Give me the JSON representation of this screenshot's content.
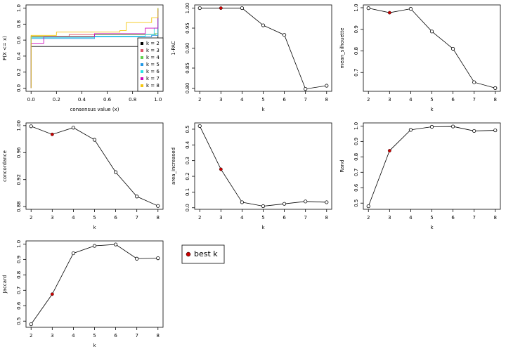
{
  "chart_data": [
    {
      "type": "step",
      "xlabel": "consensus value (x)",
      "ylabel": "P(X <= x)",
      "xlim": [
        -0.04,
        1.04
      ],
      "ylim": [
        -0.04,
        1.04
      ],
      "xticks": [
        {
          "value": 0,
          "label": "0.0"
        },
        0.2,
        0.4,
        0.6,
        0.8,
        {
          "value": 1,
          "label": "1.0"
        }
      ],
      "yticks": [
        {
          "value": 0,
          "label": "0.0"
        },
        0.2,
        0.4,
        0.6,
        0.8,
        {
          "value": 1,
          "label": "1.0"
        }
      ],
      "legend": "bottom-right",
      "series": [
        {
          "name": "k = 2",
          "color": "#000000",
          "x": [
            0,
            0,
            1,
            1
          ],
          "values": [
            0,
            0.52,
            0.52,
            1
          ]
        },
        {
          "name": "k = 3",
          "color": "#DF536B",
          "x": [
            0,
            0,
            0.3,
            0.97,
            1
          ],
          "values": [
            0,
            0.64,
            0.67,
            0.68,
            1
          ]
        },
        {
          "name": "k = 4",
          "color": "#61D04F",
          "x": [
            0,
            0,
            0.5,
            0.98,
            1
          ],
          "values": [
            0,
            0.65,
            0.67,
            0.68,
            1
          ]
        },
        {
          "name": "k = 5",
          "color": "#2297E6",
          "x": [
            0,
            0,
            0.5,
            0.95,
            1
          ],
          "values": [
            0,
            0.62,
            0.64,
            0.66,
            1
          ]
        },
        {
          "name": "k = 6",
          "color": "#28E2E5",
          "x": [
            0,
            0,
            0.5,
            0.9,
            0.97,
            1
          ],
          "values": [
            0,
            0.63,
            0.65,
            0.67,
            0.75,
            0.95
          ]
        },
        {
          "name": "k = 7",
          "color": "#CD0BBC",
          "x": [
            0,
            0,
            0.1,
            0.5,
            0.9,
            1
          ],
          "values": [
            0,
            0.56,
            0.64,
            0.68,
            0.75,
            0.97
          ]
        },
        {
          "name": "k = 8",
          "color": "#F5C710",
          "x": [
            0,
            0,
            0.2,
            0.7,
            0.75,
            0.95,
            1
          ],
          "values": [
            0,
            0.66,
            0.7,
            0.72,
            0.82,
            0.88,
            1
          ]
        }
      ]
    },
    {
      "type": "line",
      "xlabel": "k",
      "ylabel": "1-PAC",
      "x": [
        2,
        3,
        4,
        5,
        6,
        7,
        8
      ],
      "values": [
        1,
        1,
        1,
        0.957,
        0.933,
        0.798,
        0.806
      ],
      "xlim": [
        1.76,
        8.24
      ],
      "ylim": [
        0.792,
        1.008
      ],
      "xticks": [
        2,
        3,
        4,
        5,
        6,
        7,
        8
      ],
      "yticks": [
        {
          "value": 0.8,
          "label": "0.80"
        },
        0.85,
        {
          "value": 0.9,
          "label": "0.90"
        },
        0.95,
        {
          "value": 1,
          "label": "1.00"
        }
      ],
      "best_k": 3,
      "highlight_color": "#CC0000"
    },
    {
      "type": "line",
      "xlabel": "k",
      "ylabel": "mean_silhouette",
      "x": [
        2,
        3,
        4,
        5,
        6,
        7,
        8
      ],
      "values": [
        0.998,
        0.977,
        0.995,
        0.89,
        0.81,
        0.655,
        0.628
      ],
      "xlim": [
        1.76,
        8.24
      ],
      "ylim": [
        0.613,
        1.013
      ],
      "xticks": [
        2,
        3,
        4,
        5,
        6,
        7,
        8
      ],
      "yticks": [
        0.7,
        0.8,
        0.9,
        {
          "value": 1,
          "label": "1.0"
        }
      ],
      "best_k": 3,
      "highlight_color": "#CC0000"
    },
    {
      "type": "line",
      "xlabel": "k",
      "ylabel": "concordance",
      "x": [
        2,
        3,
        4,
        5,
        6,
        7,
        8
      ],
      "values": [
        0.999,
        0.987,
        0.997,
        0.979,
        0.931,
        0.895,
        0.881
      ],
      "xlim": [
        1.76,
        8.24
      ],
      "ylim": [
        0.876,
        1.004
      ],
      "xticks": [
        2,
        3,
        4,
        5,
        6,
        7,
        8
      ],
      "yticks": [
        0.88,
        0.92,
        0.96,
        {
          "value": 1,
          "label": "1.00"
        }
      ],
      "best_k": 3,
      "highlight_color": "#CC0000"
    },
    {
      "type": "line",
      "xlabel": "k",
      "ylabel": "area_increased",
      "x": [
        2,
        3,
        4,
        5,
        6,
        7,
        8
      ],
      "values": [
        0.52,
        0.245,
        0.035,
        0.01,
        0.025,
        0.04,
        0.035
      ],
      "xlim": [
        1.76,
        8.24
      ],
      "ylim": [
        -0.01,
        0.54
      ],
      "xticks": [
        2,
        3,
        4,
        5,
        6,
        7,
        8
      ],
      "yticks": [
        {
          "value": 0,
          "label": "0.0"
        },
        0.1,
        0.2,
        0.3,
        0.4,
        0.5
      ],
      "best_k": 3,
      "highlight_color": "#CC0000"
    },
    {
      "type": "line",
      "xlabel": "k",
      "ylabel": "Rand",
      "x": [
        2,
        3,
        4,
        5,
        6,
        7,
        8
      ],
      "values": [
        0.48,
        0.84,
        0.975,
        0.995,
        0.997,
        0.968,
        0.972
      ],
      "xlim": [
        1.76,
        8.24
      ],
      "ylim": [
        0.46,
        1.02
      ],
      "xticks": [
        2,
        3,
        4,
        5,
        6,
        7,
        8
      ],
      "yticks": [
        0.5,
        0.6,
        0.7,
        0.8,
        0.9,
        {
          "value": 1,
          "label": "1.0"
        }
      ],
      "best_k": 3,
      "highlight_color": "#CC0000"
    },
    {
      "type": "line",
      "xlabel": "k",
      "ylabel": "Jaccard",
      "x": [
        2,
        3,
        4,
        5,
        6,
        7,
        8
      ],
      "values": [
        0.48,
        0.675,
        0.94,
        0.988,
        0.997,
        0.905,
        0.908
      ],
      "xlim": [
        1.76,
        8.24
      ],
      "ylim": [
        0.46,
        1.02
      ],
      "xticks": [
        2,
        3,
        4,
        5,
        6,
        7,
        8
      ],
      "yticks": [
        0.5,
        0.6,
        0.7,
        0.8,
        0.9,
        {
          "value": 1,
          "label": "1.0"
        }
      ],
      "best_k": 3,
      "highlight_color": "#CC0000"
    },
    {
      "type": "legend",
      "labels": [
        "best k"
      ],
      "color": "#CC0000"
    }
  ]
}
